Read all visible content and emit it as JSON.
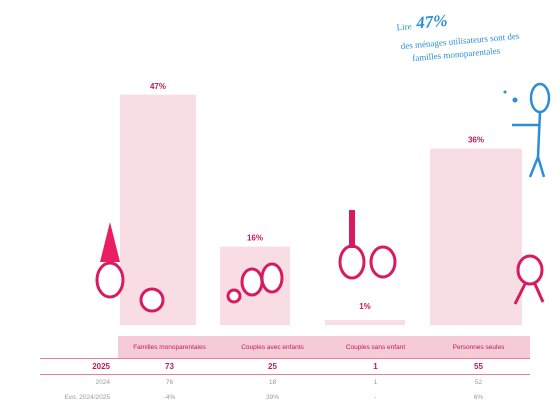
{
  "chart_data": {
    "type": "bar",
    "categories": [
      "Familles monoparentales",
      "Couples avec enfants",
      "Couples sans enfant",
      "Personnes seules"
    ],
    "values": [
      47,
      16,
      1,
      36
    ],
    "value_labels": [
      "47%",
      "16%",
      "1%",
      "36%"
    ],
    "color": "#f8dde5",
    "annotation": {
      "lead": "Lire",
      "value": "47%",
      "lines": [
        "des ménages utilisateurs sont des",
        "familles monoparentales"
      ]
    }
  },
  "table": {
    "rows": [
      [
        "2025",
        "73",
        "25",
        "1",
        "55"
      ],
      [
        "2024",
        "76",
        "18",
        "1",
        "52"
      ],
      [
        "Evo. 2024/2025",
        "-4%",
        "39%",
        "-",
        "6%"
      ]
    ]
  }
}
